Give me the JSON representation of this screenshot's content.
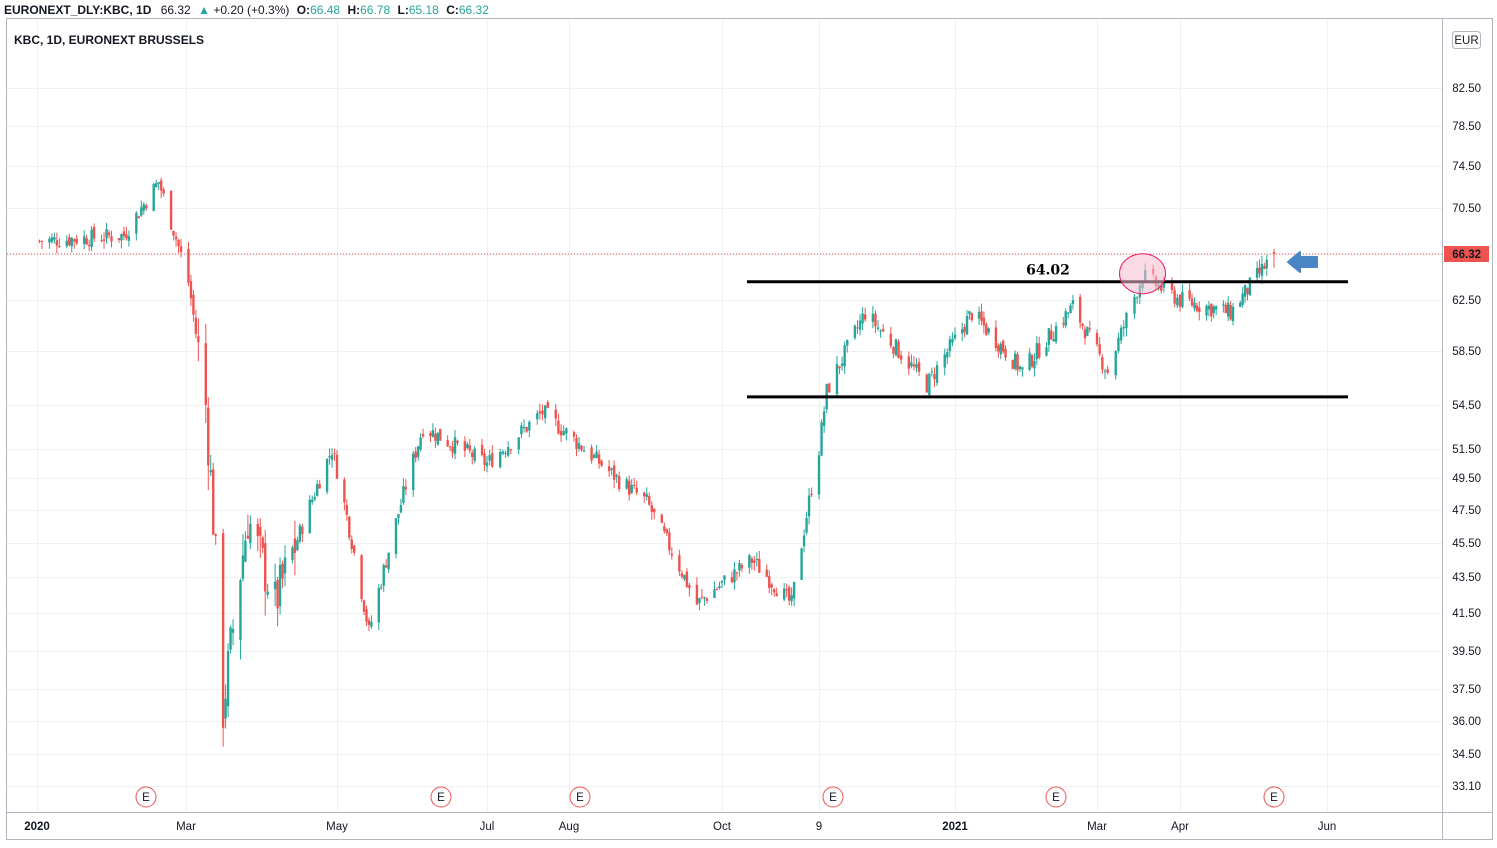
{
  "header": {
    "symbol": "EURONEXT_DLY:KBC, 1D",
    "last": "66.32",
    "change": "+0.20 (+0.3%)",
    "o_label": "O:",
    "o_value": "66.48",
    "h_label": "H:",
    "h_value": "66.78",
    "l_label": "L:",
    "l_value": "65.18",
    "c_label": "C:",
    "c_value": "66.32",
    "legend": "KBC, 1D, EURONEXT BRUSSELS",
    "currency": "EUR"
  },
  "colors": {
    "up": "#26a69a",
    "down": "#ef5350",
    "grid": "#eef0f3",
    "axis": "#131722",
    "price_tag": "#ef5350",
    "highlight_fill": "#f8bbd0",
    "highlight_stroke": "#e91e63",
    "arrow": "#4a86c5"
  },
  "chart_data": {
    "type": "candlestick",
    "y_ticks": [
      "82.50",
      "78.50",
      "74.50",
      "70.50",
      "66.32",
      "62.50",
      "58.50",
      "54.50",
      "51.50",
      "49.50",
      "47.50",
      "45.50",
      "43.50",
      "41.50",
      "39.50",
      "37.50",
      "36.00",
      "34.50",
      "33.10"
    ],
    "x_ticks": [
      "2020",
      "Mar",
      "May",
      "Jul",
      "Aug",
      "Oct",
      "9",
      "2021",
      "Mar",
      "Apr",
      "Jun"
    ],
    "last_price": 66.32,
    "earnings_marker": "E",
    "annotations": {
      "resistance_level": 64.02,
      "resistance_label": "64.02",
      "support_level": 55.1
    },
    "keypoints": [
      {
        "date": "2020-01-02",
        "close": 67.5
      },
      {
        "date": "2020-02-05",
        "close": 68.0
      },
      {
        "date": "2020-02-19",
        "close": 73.0
      },
      {
        "date": "2020-03-02",
        "close": 64.0
      },
      {
        "date": "2020-03-09",
        "close": 54.5
      },
      {
        "date": "2020-03-13",
        "close": 44.5
      },
      {
        "date": "2020-03-16",
        "close": 36.5
      },
      {
        "date": "2020-03-26",
        "close": 47.0
      },
      {
        "date": "2020-04-06",
        "close": 42.0
      },
      {
        "date": "2020-04-29",
        "close": 51.5
      },
      {
        "date": "2020-05-14",
        "close": 40.5
      },
      {
        "date": "2020-06-05",
        "close": 53.0
      },
      {
        "date": "2020-07-01",
        "close": 50.5
      },
      {
        "date": "2020-07-22",
        "close": 54.0
      },
      {
        "date": "2020-08-20",
        "close": 49.5
      },
      {
        "date": "2020-09-01",
        "close": 48.0
      },
      {
        "date": "2020-09-21",
        "close": 42.0
      },
      {
        "date": "2020-10-13",
        "close": 44.5
      },
      {
        "date": "2020-10-29",
        "close": 42.0
      },
      {
        "date": "2020-11-09",
        "close": 51.5
      },
      {
        "date": "2020-11-12",
        "close": 55.5
      },
      {
        "date": "2020-11-27",
        "close": 61.5
      },
      {
        "date": "2020-12-21",
        "close": 56.0
      },
      {
        "date": "2021-01-08",
        "close": 61.5
      },
      {
        "date": "2021-01-29",
        "close": 57.0
      },
      {
        "date": "2021-02-19",
        "close": 62.0
      },
      {
        "date": "2021-03-05",
        "close": 57.0
      },
      {
        "date": "2021-03-18",
        "close": 64.5
      },
      {
        "date": "2021-04-01",
        "close": 62.5
      },
      {
        "date": "2021-04-22",
        "close": 61.5
      },
      {
        "date": "2021-05-10",
        "close": 66.32
      }
    ]
  }
}
